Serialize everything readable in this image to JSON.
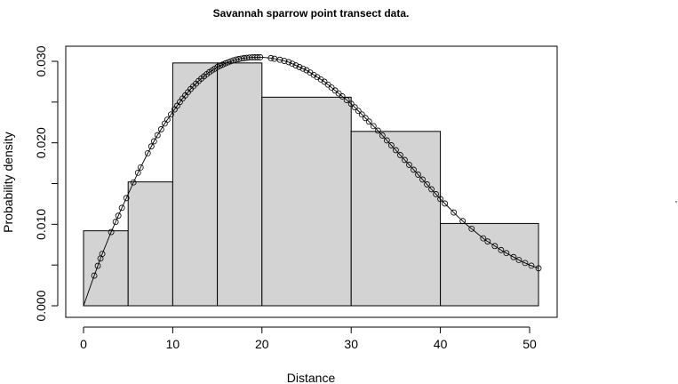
{
  "chart_data": {
    "type": "histogram",
    "title": "Savannah sparrow point transect data.",
    "xlabel": "Distance",
    "ylabel": "Probability density",
    "xlim": [
      0,
      51
    ],
    "ylim": [
      0,
      0.032
    ],
    "x_ticks": [
      0,
      10,
      20,
      30,
      40,
      50
    ],
    "x_tick_labels": [
      "0",
      "10",
      "20",
      "30",
      "40",
      "50"
    ],
    "y_ticks": [
      0.0,
      0.005,
      0.01,
      0.015,
      0.02,
      0.025,
      0.03
    ],
    "y_tick_labels": [
      "0.000",
      "",
      "0.010",
      "",
      "0.020",
      "",
      "0.030"
    ],
    "bins": [
      {
        "from": 0,
        "to": 5,
        "density": 0.0092
      },
      {
        "from": 5,
        "to": 10,
        "density": 0.0152
      },
      {
        "from": 10,
        "to": 15,
        "density": 0.0298
      },
      {
        "from": 15,
        "to": 20,
        "density": 0.0298
      },
      {
        "from": 20,
        "to": 30,
        "density": 0.0256
      },
      {
        "from": 30,
        "to": 40,
        "density": 0.0214
      },
      {
        "from": 40,
        "to": 51,
        "density": 0.0101
      }
    ],
    "bar_fill": "#d3d3d3",
    "fitted_curve": {
      "x": [
        0,
        1,
        2,
        3,
        4,
        5,
        6,
        7,
        8,
        9,
        10,
        11,
        12,
        13,
        14,
        15,
        16,
        17,
        18,
        19,
        20,
        21,
        22,
        23,
        24,
        25,
        26,
        27,
        28,
        29,
        30,
        31,
        32,
        33,
        34,
        35,
        36,
        37,
        38,
        39,
        40,
        41,
        42,
        43,
        44,
        45,
        46,
        47,
        48,
        49,
        50,
        51
      ],
      "y": [
        0.0,
        0.0031,
        0.0061,
        0.0088,
        0.0113,
        0.0137,
        0.0161,
        0.0183,
        0.0204,
        0.0222,
        0.0238,
        0.0253,
        0.0266,
        0.0277,
        0.0286,
        0.0293,
        0.0298,
        0.0302,
        0.0304,
        0.0305,
        0.0305,
        0.0304,
        0.0302,
        0.0299,
        0.0294,
        0.0289,
        0.0282,
        0.0275,
        0.0266,
        0.0257,
        0.0248,
        0.0237,
        0.0226,
        0.0215,
        0.0203,
        0.0191,
        0.0179,
        0.0167,
        0.0155,
        0.0143,
        0.0131,
        0.012,
        0.0109,
        0.0099,
        0.009,
        0.0081,
        0.0074,
        0.0067,
        0.0061,
        0.0055,
        0.005,
        0.0046
      ]
    },
    "observation_distances": [
      1.2,
      1.6,
      1.9,
      2.1,
      3.1,
      3.6,
      3.9,
      4.3,
      4.8,
      5.6,
      6.1,
      6.4,
      7.2,
      7.6,
      7.9,
      8.3,
      8.7,
      9.1,
      9.4,
      9.8,
      10.2,
      10.5,
      10.8,
      11.1,
      11.4,
      11.7,
      12.0,
      12.3,
      12.6,
      12.9,
      13.2,
      13.5,
      13.8,
      14.1,
      14.4,
      14.7,
      15.0,
      15.3,
      15.6,
      15.9,
      16.2,
      16.5,
      16.8,
      17.1,
      17.4,
      17.7,
      18.0,
      18.3,
      18.6,
      18.9,
      19.2,
      19.5,
      19.8,
      21.0,
      21.4,
      22.0,
      22.5,
      23.0,
      23.4,
      23.8,
      24.2,
      24.6,
      25.0,
      25.4,
      25.8,
      26.2,
      26.6,
      27.0,
      27.4,
      27.8,
      28.2,
      28.6,
      29.0,
      29.5,
      30.0,
      30.4,
      30.8,
      31.2,
      31.6,
      32.0,
      32.5,
      33.0,
      33.5,
      34.0,
      34.5,
      35.0,
      35.5,
      36.0,
      36.5,
      37.0,
      37.5,
      38.0,
      38.5,
      39.0,
      39.5,
      40.0,
      40.5,
      41.5,
      42.5,
      43.5,
      44.8,
      45.3,
      46.1,
      46.8,
      47.4,
      48.2,
      48.8,
      49.5,
      50.2,
      51.0
    ]
  },
  "colors": {
    "background": "#ffffff",
    "axis": "#000000",
    "bar_fill": "#d3d3d3",
    "bar_stroke": "#000000",
    "curve": "#000000"
  }
}
